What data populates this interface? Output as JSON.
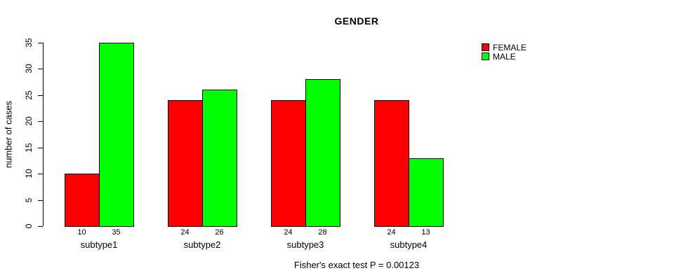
{
  "chart_data": {
    "type": "bar",
    "title": "GENDER",
    "ylabel": "number of cases",
    "xlabel": "",
    "caption": "Fisher's exact test P = 0.00123",
    "categories": [
      "subtype1",
      "subtype2",
      "subtype3",
      "subtype4"
    ],
    "series": [
      {
        "name": "FEMALE",
        "color": "#ff0000",
        "values": [
          10,
          24,
          24,
          24
        ]
      },
      {
        "name": "MALE",
        "color": "#00ff00",
        "values": [
          35,
          26,
          28,
          13
        ]
      }
    ],
    "bar_value_labels": [
      [
        "10",
        "35"
      ],
      [
        "24",
        "26"
      ],
      [
        "24",
        "28"
      ],
      [
        "24",
        "13"
      ]
    ],
    "ylim": [
      0,
      35
    ],
    "yticks": [
      0,
      5,
      10,
      15,
      20,
      25,
      30,
      35
    ],
    "grid": false,
    "legend_position": "right-outside",
    "bar_outline_color": "#000000",
    "background_color": "#ffffff"
  }
}
